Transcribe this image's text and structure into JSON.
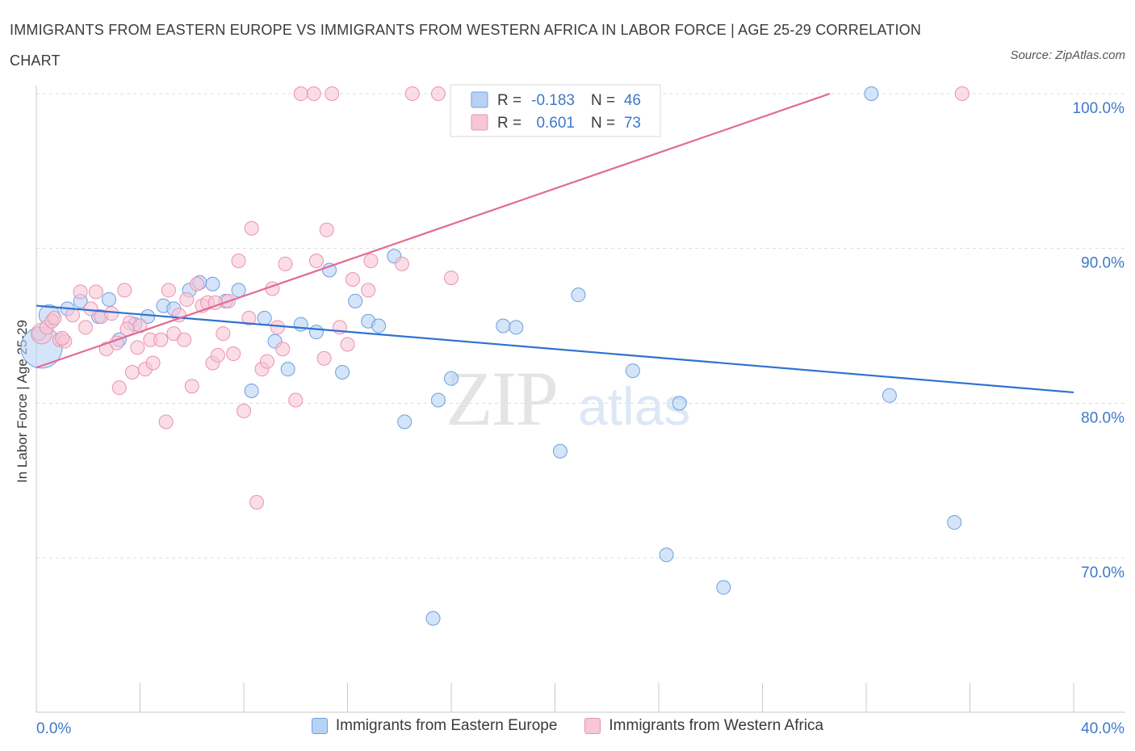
{
  "title": "IMMIGRANTS FROM EASTERN EUROPE VS IMMIGRANTS FROM WESTERN AFRICA IN LABOR FORCE | AGE 25-29 CORRELATION CHART",
  "source": "Source: ZipAtlas.com",
  "watermark": {
    "zip": "ZIP",
    "atlas": "atlas"
  },
  "colors": {
    "blue_fill": "#b8d2f5",
    "blue_stroke": "#6e9fe0",
    "blue_line": "#2f72d0",
    "pink_fill": "#f8c6d6",
    "pink_stroke": "#e993b0",
    "pink_line": "#e36a93",
    "tick_label": "#3f78c9",
    "grid": "#dcdcdc"
  },
  "stats_box": {
    "rows": [
      {
        "r_label": "R =",
        "r_value": "-0.183",
        "n_label": "N =",
        "n_value": "46"
      },
      {
        "r_label": "R =",
        "r_value": "0.601",
        "n_label": "N =",
        "n_value": "73"
      }
    ]
  },
  "legend": [
    {
      "label": "Immigrants from Eastern Europe"
    },
    {
      "label": "Immigrants from Western Africa"
    }
  ],
  "chart_data": {
    "type": "scatter",
    "xlabel": "",
    "ylabel": "In Labor Force | Age 25-29",
    "xlim": [
      0,
      40
    ],
    "ylim": [
      60,
      100
    ],
    "x_tick_labels": [
      {
        "value": 0,
        "label": "0.0%"
      },
      {
        "value": 40,
        "label": "40.0%"
      }
    ],
    "y_tick_labels": [
      {
        "value": 100,
        "label": "100.0%"
      },
      {
        "value": 90,
        "label": "90.0%"
      },
      {
        "value": 80,
        "label": "80.0%"
      },
      {
        "value": 70,
        "label": "70.0%"
      }
    ],
    "x_minor_ticks": [
      4,
      8,
      12,
      16,
      20,
      24,
      28,
      32,
      36,
      40
    ],
    "grid": "horizontal dashed",
    "series": [
      {
        "name": "Immigrants from Eastern Europe",
        "color": "blue",
        "trend": {
          "x": [
            0,
            40
          ],
          "y": [
            86.3,
            80.7
          ]
        },
        "points": [
          [
            0.2,
            83.6,
            3
          ],
          [
            0.5,
            85.7,
            1.5
          ],
          [
            1.2,
            86.1,
            1
          ],
          [
            1.7,
            86.6,
            1
          ],
          [
            2.4,
            85.6,
            1
          ],
          [
            2.8,
            86.7,
            1
          ],
          [
            3.2,
            84.1,
            1
          ],
          [
            3.8,
            85.1,
            1
          ],
          [
            4.3,
            85.6,
            1
          ],
          [
            4.9,
            86.3,
            1
          ],
          [
            5.3,
            86.1,
            1
          ],
          [
            5.9,
            87.3,
            1
          ],
          [
            6.3,
            87.8,
            1
          ],
          [
            6.8,
            87.7,
            1
          ],
          [
            7.3,
            86.6,
            1
          ],
          [
            7.8,
            87.3,
            1
          ],
          [
            8.3,
            80.8,
            1
          ],
          [
            8.8,
            85.5,
            1
          ],
          [
            9.2,
            84.0,
            1
          ],
          [
            9.7,
            82.2,
            1
          ],
          [
            10.2,
            85.1,
            1
          ],
          [
            10.8,
            84.6,
            1
          ],
          [
            11.3,
            88.6,
            1
          ],
          [
            11.8,
            82.0,
            1
          ],
          [
            12.3,
            86.6,
            1
          ],
          [
            12.8,
            85.3,
            1
          ],
          [
            13.2,
            85.0,
            1
          ],
          [
            13.8,
            89.5,
            1
          ],
          [
            14.2,
            78.8,
            1
          ],
          [
            15.3,
            66.1,
            1
          ],
          [
            15.5,
            80.2,
            1
          ],
          [
            16.0,
            81.6,
            1
          ],
          [
            18.0,
            85.0,
            1
          ],
          [
            18.5,
            84.9,
            1
          ],
          [
            19.5,
            100.0,
            1
          ],
          [
            20.2,
            76.9,
            1
          ],
          [
            20.9,
            87.0,
            1
          ],
          [
            22.5,
            100.0,
            1
          ],
          [
            23.0,
            82.1,
            1
          ],
          [
            24.3,
            70.2,
            1
          ],
          [
            24.8,
            80.0,
            1
          ],
          [
            26.5,
            68.1,
            1
          ],
          [
            32.2,
            100.0,
            1
          ],
          [
            32.9,
            80.5,
            1
          ],
          [
            35.4,
            72.3,
            1
          ],
          [
            0.1,
            84.5,
            1
          ]
        ]
      },
      {
        "name": "Immigrants from Western Africa",
        "color": "pink",
        "trend": {
          "x": [
            0,
            30.6
          ],
          "y": [
            82.3,
            100.0
          ]
        },
        "points": [
          [
            0.2,
            84.5,
            1.5
          ],
          [
            0.4,
            84.9,
            1
          ],
          [
            0.6,
            85.3,
            1
          ],
          [
            0.9,
            84.1,
            1
          ],
          [
            1.1,
            84.0,
            1
          ],
          [
            1.4,
            85.7,
            1
          ],
          [
            1.7,
            87.2,
            1
          ],
          [
            1.9,
            84.9,
            1
          ],
          [
            2.1,
            86.1,
            1
          ],
          [
            2.3,
            87.2,
            1
          ],
          [
            2.5,
            85.6,
            1
          ],
          [
            2.7,
            83.5,
            1
          ],
          [
            2.9,
            85.8,
            1
          ],
          [
            3.1,
            83.9,
            1
          ],
          [
            3.2,
            81.0,
            1
          ],
          [
            3.4,
            87.3,
            1
          ],
          [
            3.6,
            85.2,
            1
          ],
          [
            3.7,
            82.0,
            1
          ],
          [
            3.9,
            83.6,
            1
          ],
          [
            4.0,
            85.0,
            1
          ],
          [
            4.2,
            82.2,
            1
          ],
          [
            4.4,
            84.1,
            1
          ],
          [
            4.5,
            82.6,
            1
          ],
          [
            4.8,
            84.1,
            1
          ],
          [
            5.0,
            78.8,
            1
          ],
          [
            5.1,
            87.3,
            1
          ],
          [
            5.3,
            84.5,
            1
          ],
          [
            5.5,
            85.7,
            1
          ],
          [
            5.7,
            84.1,
            1
          ],
          [
            5.8,
            86.7,
            1
          ],
          [
            6.0,
            81.1,
            1
          ],
          [
            6.2,
            87.7,
            1
          ],
          [
            6.4,
            86.3,
            1
          ],
          [
            6.6,
            86.5,
            1
          ],
          [
            6.8,
            82.6,
            1
          ],
          [
            7.0,
            83.1,
            1
          ],
          [
            7.2,
            84.5,
            1
          ],
          [
            7.4,
            86.6,
            1
          ],
          [
            7.6,
            83.2,
            1
          ],
          [
            7.8,
            89.2,
            1
          ],
          [
            8.0,
            79.5,
            1
          ],
          [
            8.2,
            85.5,
            1
          ],
          [
            8.3,
            91.3,
            1
          ],
          [
            8.5,
            73.6,
            1
          ],
          [
            8.7,
            82.2,
            1
          ],
          [
            8.9,
            82.7,
            1
          ],
          [
            9.1,
            87.4,
            1
          ],
          [
            9.3,
            84.9,
            1
          ],
          [
            9.5,
            83.5,
            1
          ],
          [
            9.6,
            89.0,
            1
          ],
          [
            10.0,
            80.2,
            1
          ],
          [
            10.2,
            100.0,
            1
          ],
          [
            10.7,
            100.0,
            1
          ],
          [
            10.8,
            89.2,
            1
          ],
          [
            11.1,
            82.9,
            1
          ],
          [
            11.2,
            91.2,
            1
          ],
          [
            11.4,
            100.0,
            1
          ],
          [
            11.7,
            84.9,
            1
          ],
          [
            12.0,
            83.8,
            1
          ],
          [
            12.2,
            88.0,
            1
          ],
          [
            12.8,
            87.3,
            1
          ],
          [
            12.9,
            89.2,
            1
          ],
          [
            14.1,
            89.0,
            1
          ],
          [
            14.5,
            100.0,
            1
          ],
          [
            15.5,
            100.0,
            1
          ],
          [
            16.0,
            88.1,
            1
          ],
          [
            19.2,
            100.0,
            1
          ],
          [
            22.5,
            100.0,
            1
          ],
          [
            35.7,
            100.0,
            1
          ],
          [
            0.7,
            85.5,
            1
          ],
          [
            1.0,
            84.2,
            1
          ],
          [
            6.9,
            86.5,
            1
          ],
          [
            3.5,
            84.8,
            1
          ]
        ]
      }
    ]
  }
}
